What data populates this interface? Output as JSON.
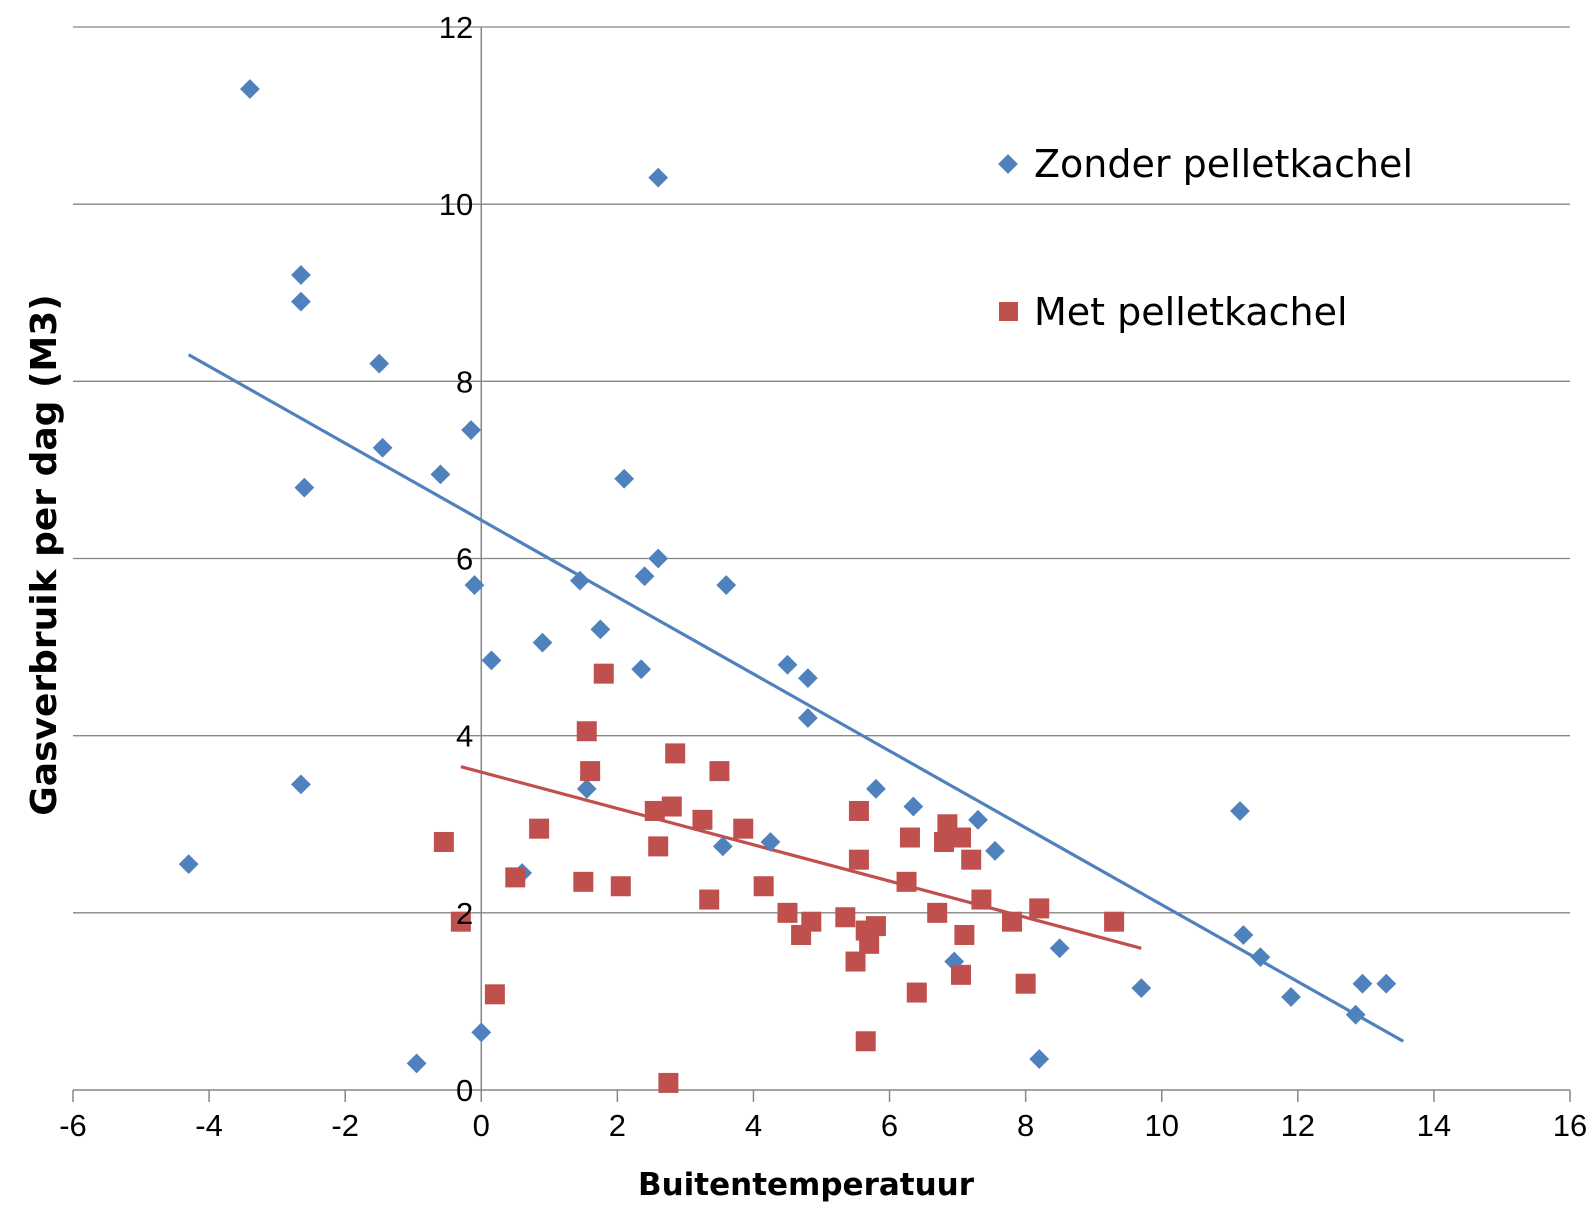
{
  "chart_data": {
    "type": "scatter",
    "title": "",
    "xlabel": "Buitentemperatuur",
    "ylabel": "Gasverbruik per dag (M3)",
    "xlim": [
      -6,
      16
    ],
    "ylim": [
      0,
      12
    ],
    "xticks": [
      "-6",
      "-4",
      "-2",
      "0",
      "2",
      "4",
      "6",
      "8",
      "10",
      "12",
      "14",
      "16"
    ],
    "yticks": [
      "0",
      "2",
      "4",
      "6",
      "8",
      "10",
      "12"
    ],
    "grid": "horizontal",
    "legend_position": "top-right",
    "series": [
      {
        "name": "Zonder pelletkachel",
        "marker": "diamond",
        "color": "#4F81BD",
        "x": [
          -3.4,
          -2.65,
          -2.65,
          -1.5,
          -1.45,
          -2.6,
          -0.6,
          -0.15,
          -0.1,
          0.15,
          0.9,
          2.1,
          2.6,
          2.4,
          1.45,
          1.75,
          2.35,
          3.6,
          4.5,
          4.8,
          4.8,
          1.55,
          3.55,
          4.25,
          5.8,
          6.35,
          7.3,
          7.55,
          6.95,
          8.5,
          9.7,
          11.15,
          11.2,
          11.45,
          11.9,
          12.85,
          12.95,
          13.3,
          -4.3,
          -2.65,
          0.6,
          -0.95,
          0.0,
          8.2,
          2.6
        ],
        "y": [
          11.3,
          9.2,
          8.9,
          8.2,
          7.25,
          6.8,
          6.95,
          7.45,
          5.7,
          4.85,
          5.05,
          6.9,
          6.0,
          5.8,
          5.75,
          5.2,
          4.75,
          5.7,
          4.8,
          4.65,
          4.2,
          3.4,
          2.75,
          2.8,
          3.4,
          3.2,
          3.05,
          2.7,
          1.45,
          1.6,
          1.15,
          3.15,
          1.75,
          1.5,
          1.05,
          0.85,
          1.2,
          1.2,
          2.55,
          3.45,
          2.45,
          0.3,
          0.65,
          0.35,
          10.3
        ]
      },
      {
        "name": "Met pelletkachel",
        "marker": "square",
        "color": "#C0504D",
        "x": [
          -0.55,
          -0.3,
          0.2,
          0.5,
          0.85,
          1.5,
          1.55,
          1.6,
          1.8,
          2.05,
          2.55,
          2.6,
          2.8,
          2.85,
          2.75,
          3.25,
          3.35,
          3.5,
          3.85,
          4.15,
          4.5,
          4.7,
          4.85,
          5.35,
          5.5,
          5.55,
          5.55,
          5.65,
          5.7,
          5.8,
          5.65,
          6.25,
          6.3,
          6.4,
          6.7,
          6.8,
          6.85,
          7.05,
          7.1,
          7.05,
          7.2,
          7.35,
          7.8,
          8.0,
          8.2,
          9.3
        ],
        "y": [
          2.8,
          1.9,
          1.08,
          2.4,
          2.95,
          2.35,
          4.05,
          3.6,
          4.7,
          2.3,
          3.15,
          2.75,
          3.2,
          3.8,
          0.08,
          3.05,
          2.15,
          3.6,
          2.95,
          2.3,
          2.0,
          1.75,
          1.9,
          1.95,
          1.45,
          2.6,
          3.15,
          1.8,
          1.65,
          1.85,
          0.55,
          2.35,
          2.85,
          1.1,
          2.0,
          2.8,
          3.0,
          2.85,
          1.75,
          1.3,
          2.6,
          2.15,
          1.9,
          1.2,
          2.05,
          1.9
        ]
      }
    ],
    "trendlines": [
      {
        "series": "Zonder pelletkachel",
        "color": "#4F81BD",
        "x": [
          -4.3,
          13.55
        ],
        "y": [
          8.3,
          0.55
        ]
      },
      {
        "series": "Met pelletkachel",
        "color": "#C0504D",
        "x": [
          -0.3,
          9.7
        ],
        "y": [
          3.65,
          1.6
        ]
      }
    ]
  }
}
